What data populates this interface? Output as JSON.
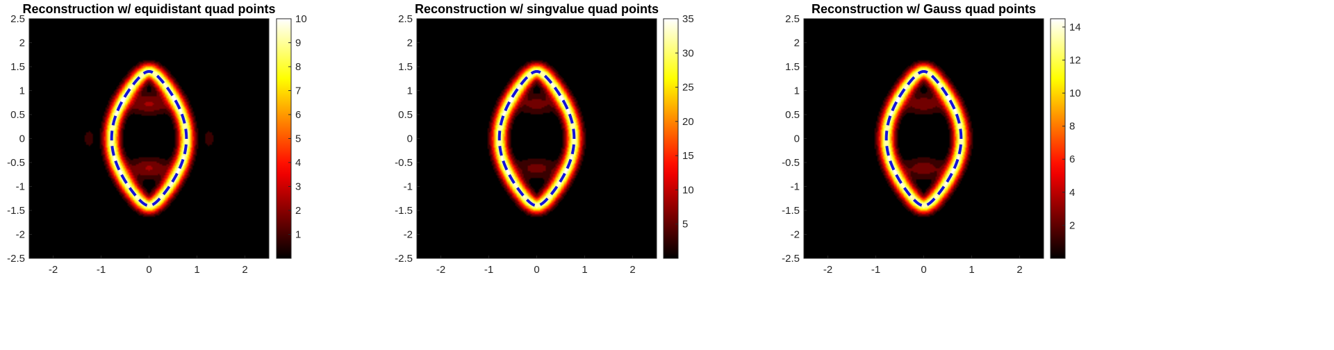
{
  "chart_data": [
    {
      "type": "heatmap",
      "title": "Reconstruction w/ equidistant quad points",
      "xlim": [
        -2.5,
        2.5
      ],
      "ylim": [
        -2.5,
        2.5
      ],
      "x_ticks": [
        "-2",
        "-1",
        "0",
        "1",
        "2"
      ],
      "y_ticks": [
        "2.5",
        "2",
        "1.5",
        "1",
        "0.5",
        "0",
        "-0.5",
        "-1",
        "-1.5",
        "-2",
        "-2.5"
      ],
      "colorbar": {
        "colormap": "hot",
        "range": [
          0,
          10
        ],
        "ticks": [
          "1",
          "2",
          "3",
          "4",
          "5",
          "6",
          "7",
          "8",
          "9",
          "10"
        ]
      },
      "true_boundary": {
        "style": "dashed",
        "color": "#1414d8",
        "shape": "peanut",
        "x_extent": [
          -0.78,
          0.78
        ],
        "y_extent": [
          -1.4,
          1.4
        ]
      },
      "features": {
        "ring_peak": 10,
        "inner_blobs": [
          {
            "x": 0,
            "y": 0.72,
            "amp": 2.6
          },
          {
            "x": 0,
            "y": -0.62,
            "amp": 2.6
          }
        ],
        "side_blobs": [
          {
            "x": -1.25,
            "y": 0,
            "amp": 1.6
          },
          {
            "x": 1.25,
            "y": 0,
            "amp": 1.6
          }
        ]
      }
    },
    {
      "type": "heatmap",
      "title": "Reconstruction w/ singvalue quad points",
      "xlim": [
        -2.5,
        2.5
      ],
      "ylim": [
        -2.5,
        2.5
      ],
      "x_ticks": [
        "-2",
        "-1",
        "0",
        "1",
        "2"
      ],
      "y_ticks": [
        "2.5",
        "2",
        "1.5",
        "1",
        "0.5",
        "0",
        "-0.5",
        "-1",
        "-1.5",
        "-2",
        "-2.5"
      ],
      "colorbar": {
        "colormap": "hot",
        "range": [
          0,
          35
        ],
        "ticks": [
          "5",
          "10",
          "15",
          "20",
          "25",
          "30",
          "35"
        ]
      },
      "true_boundary": {
        "style": "dashed",
        "color": "#1414d8",
        "shape": "peanut",
        "x_extent": [
          -0.78,
          0.78
        ],
        "y_extent": [
          -1.4,
          1.4
        ]
      },
      "features": {
        "ring_peak": 35,
        "inner_blobs": [
          {
            "x": 0,
            "y": 0.72,
            "amp": 7
          },
          {
            "x": 0,
            "y": -0.62,
            "amp": 7
          }
        ],
        "side_blobs": []
      }
    },
    {
      "type": "heatmap",
      "title": "Reconstruction w/ Gauss quad points",
      "xlim": [
        -2.5,
        2.5
      ],
      "ylim": [
        -2.5,
        2.5
      ],
      "x_ticks": [
        "-2",
        "-1",
        "0",
        "1",
        "2"
      ],
      "y_ticks": [
        "2.5",
        "2",
        "1.5",
        "1",
        "0.5",
        "0",
        "-0.5",
        "-1",
        "-1.5",
        "-2",
        "-2.5"
      ],
      "colorbar": {
        "colormap": "hot",
        "range": [
          0,
          14.5
        ],
        "ticks": [
          "2",
          "4",
          "6",
          "8",
          "10",
          "12",
          "14"
        ]
      },
      "true_boundary": {
        "style": "dashed",
        "color": "#1414d8",
        "shape": "peanut",
        "x_extent": [
          -0.78,
          0.78
        ],
        "y_extent": [
          -1.4,
          1.4
        ]
      },
      "features": {
        "ring_peak": 14.5,
        "inner_blobs": [
          {
            "x": 0,
            "y": 0.72,
            "amp": 3.2
          },
          {
            "x": 0,
            "y": -0.62,
            "amp": 3.2
          }
        ],
        "side_blobs": []
      }
    }
  ]
}
